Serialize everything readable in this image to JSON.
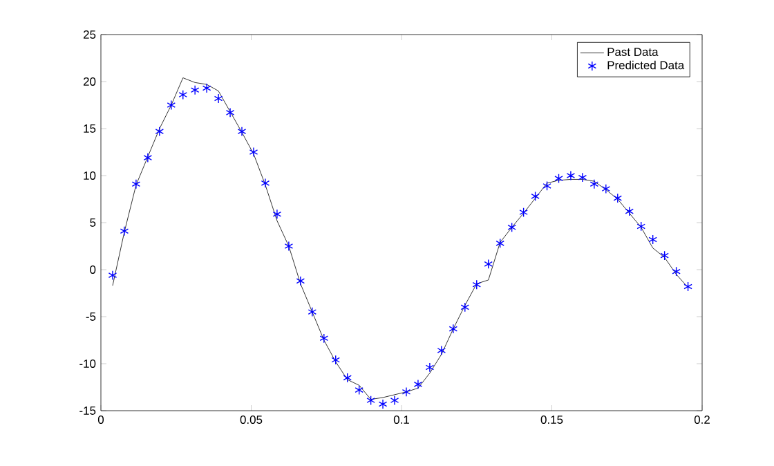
{
  "chart_data": {
    "type": "line",
    "xlim": [
      0,
      0.2
    ],
    "ylim": [
      -15,
      25
    ],
    "xticks": [
      0,
      0.05,
      0.1,
      0.15,
      0.2
    ],
    "yticks": [
      -15,
      -10,
      -5,
      0,
      5,
      10,
      15,
      20,
      25
    ],
    "grid": false,
    "legend": "top right",
    "x": [
      0.0039,
      0.0078,
      0.0117,
      0.0156,
      0.0195,
      0.0234,
      0.0273,
      0.0313,
      0.0352,
      0.0391,
      0.043,
      0.0469,
      0.0508,
      0.0547,
      0.0586,
      0.0625,
      0.0664,
      0.0703,
      0.0742,
      0.0781,
      0.082,
      0.0859,
      0.0898,
      0.0938,
      0.0977,
      0.1016,
      0.1055,
      0.1094,
      0.1133,
      0.1172,
      0.1211,
      0.125,
      0.1289,
      0.1328,
      0.1367,
      0.1406,
      0.1445,
      0.1484,
      0.1523,
      0.1563,
      0.1602,
      0.1641,
      0.168,
      0.1719,
      0.1758,
      0.1797,
      0.1836,
      0.1875,
      0.1914,
      0.1953
    ],
    "series": [
      {
        "name": "Past Data",
        "color": "#000000",
        "marker": "none",
        "line_style": "solid",
        "values": [
          -1.7,
          4.0,
          9.0,
          12.0,
          15.0,
          17.5,
          20.4,
          19.9,
          19.7,
          19.0,
          16.8,
          14.6,
          12.3,
          9.0,
          5.2,
          2.5,
          -1.5,
          -4.5,
          -7.5,
          -9.8,
          -11.7,
          -12.3,
          -13.8,
          -13.6,
          -13.3,
          -13.0,
          -12.6,
          -11.0,
          -9.0,
          -6.3,
          -3.8,
          -1.5,
          -1.1,
          2.9,
          4.5,
          6.0,
          7.6,
          9.2,
          9.5,
          9.6,
          9.6,
          9.4,
          8.5,
          7.5,
          6.0,
          4.5,
          2.3,
          1.3,
          -0.5,
          -1.9
        ]
      },
      {
        "name": "Predicted Data",
        "type": "scatter",
        "color": "#0000ff",
        "marker": "cross",
        "values": [
          -0.6,
          4.1,
          9.1,
          11.9,
          14.7,
          17.5,
          18.6,
          19.1,
          19.3,
          18.2,
          16.7,
          14.7,
          12.5,
          9.2,
          5.9,
          2.5,
          -1.2,
          -4.5,
          -7.3,
          -9.6,
          -11.5,
          -12.8,
          -13.9,
          -14.3,
          -13.9,
          -13.0,
          -12.2,
          -10.4,
          -8.6,
          -6.3,
          -4.0,
          -1.6,
          0.6,
          2.8,
          4.5,
          6.1,
          7.8,
          8.9,
          9.7,
          10.0,
          9.8,
          9.1,
          8.6,
          7.6,
          6.2,
          4.6,
          3.2,
          1.5,
          -0.2,
          -1.8
        ]
      }
    ]
  }
}
